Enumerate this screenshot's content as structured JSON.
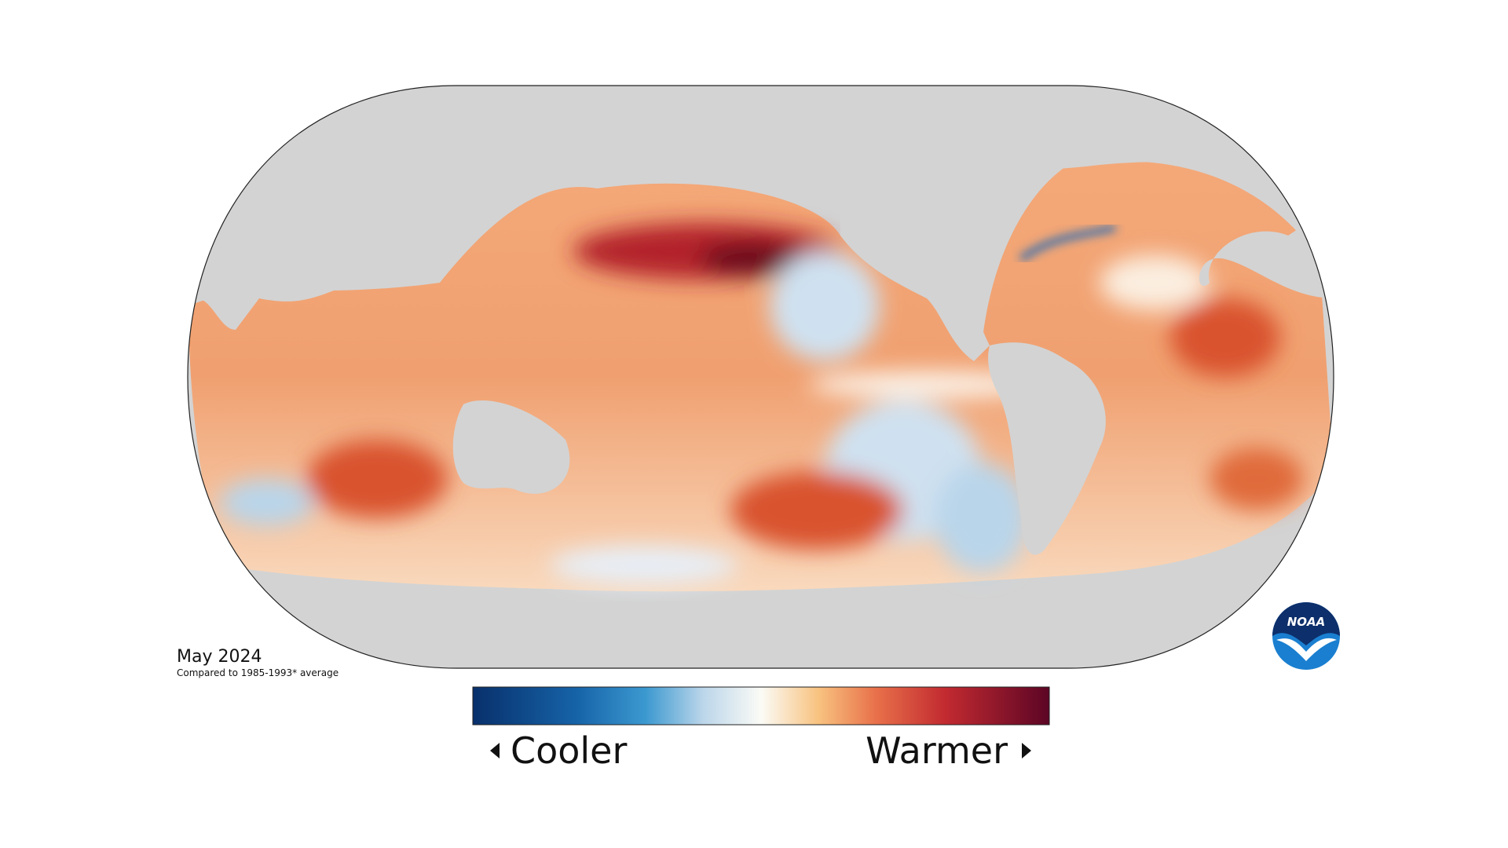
{
  "map": {
    "date": "May 2024",
    "baseline": "Compared to 1985-1993* average"
  },
  "legend": {
    "low": "Cooler",
    "high": "Warmer"
  },
  "logo": "NOAA"
}
